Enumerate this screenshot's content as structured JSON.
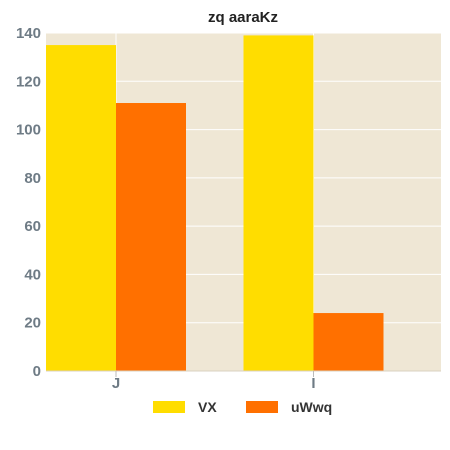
{
  "chart_data": {
    "type": "bar",
    "title": "zq aaraKz",
    "categories": [
      "J",
      "I"
    ],
    "series": [
      {
        "name": "VX",
        "values": [
          135,
          139
        ]
      },
      {
        "name": "uWwq",
        "values": [
          111,
          24
        ]
      }
    ],
    "ylim": [
      0,
      140
    ],
    "yticks": [
      0,
      20,
      40,
      60,
      80,
      100,
      120,
      140
    ],
    "grid": true,
    "legend": "bottom-center",
    "colors": {
      "series": [
        "#ffdd00",
        "#ff7000"
      ],
      "plot_background": "#efe7d5",
      "grid": "#ffffff",
      "tick_text": "#6e7b85"
    }
  }
}
